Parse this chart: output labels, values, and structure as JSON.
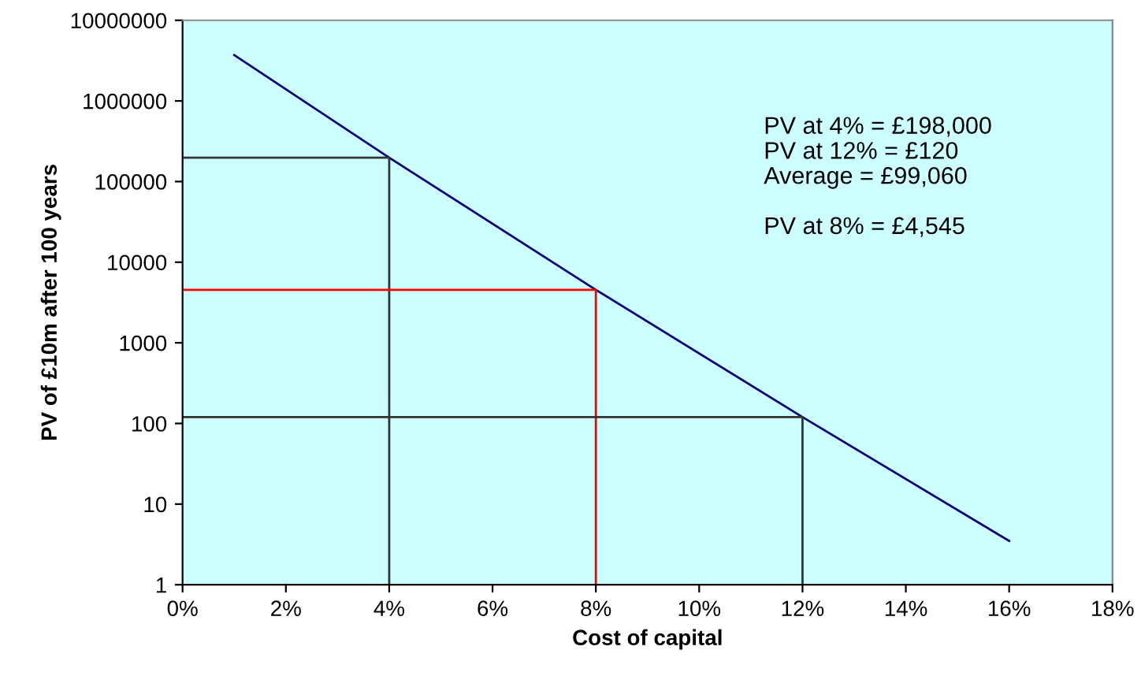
{
  "chart_data": {
    "type": "line",
    "xlabel": "Cost of capital",
    "ylabel": "PV of £10m after 100 years",
    "log": "y",
    "grid": false,
    "legend": false,
    "marker": "none",
    "line_style": "solid",
    "xlim": [
      0,
      18
    ],
    "xticks": [
      {
        "value": 0,
        "label": "0%"
      },
      {
        "value": 2,
        "label": "2%"
      },
      {
        "value": 4,
        "label": "4%"
      },
      {
        "value": 6,
        "label": "6%"
      },
      {
        "value": 8,
        "label": "8%"
      },
      {
        "value": 10,
        "label": "10%"
      },
      {
        "value": 12,
        "label": "12%"
      },
      {
        "value": 14,
        "label": "14%"
      },
      {
        "value": 16,
        "label": "16%"
      },
      {
        "value": 18,
        "label": "18%"
      }
    ],
    "ylim": [
      1,
      10000000
    ],
    "yticks": [
      1,
      10,
      100,
      1000,
      10000,
      100000,
      1000000,
      10000000
    ],
    "series": [
      {
        "color": "#000080",
        "x": [
          1,
          4,
          8,
          12,
          16
        ],
        "values": [
          3700000,
          198000,
          4545,
          120,
          3.5
        ]
      },
      {
        "color": "#333333",
        "x": [
          0,
          4,
          4
        ],
        "values": [
          198000,
          198000,
          1
        ]
      },
      {
        "color": "#ff0000",
        "x": [
          0,
          8,
          8
        ],
        "values": [
          4545,
          4545,
          1
        ]
      },
      {
        "color": "#333333",
        "x": [
          0,
          12,
          12
        ],
        "values": [
          120,
          120,
          1
        ]
      }
    ],
    "annotations": [
      "PV at 4% = £198,000\nPV at 12% = £120\nAverage = £99,060",
      "PV at 8% = £4,545"
    ]
  }
}
